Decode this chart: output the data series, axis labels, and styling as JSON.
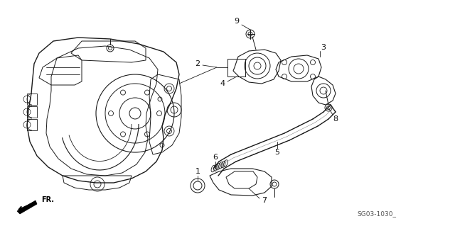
{
  "bg_color": "#ffffff",
  "line_color": "#1a1a1a",
  "fig_width": 6.4,
  "fig_height": 3.19,
  "dpi": 100,
  "diagram_code": "SG03-1030_",
  "fr_label": "FR."
}
